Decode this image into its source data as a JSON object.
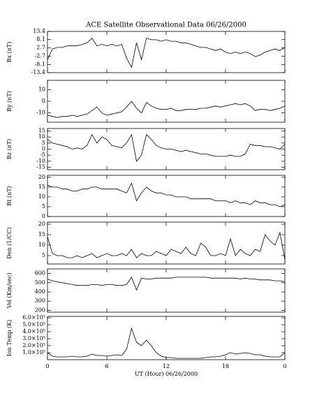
{
  "chart_data": [
    {
      "type": "line",
      "title": "ACE Satellite Observational Data   06/26/2000",
      "ylabel": "Bx (nT)",
      "color": "#000000",
      "x": [
        0,
        0.5,
        1,
        1.5,
        2,
        2.5,
        3,
        3.5,
        4,
        4.5,
        5,
        5.5,
        6,
        6.5,
        7,
        7.5,
        8,
        8.5,
        9,
        9.5,
        10,
        10.5,
        11,
        11.5,
        12,
        12.5,
        13,
        13.5,
        14,
        14.5,
        15,
        15.5,
        16,
        16.5,
        17,
        17.5,
        18,
        18.5,
        19,
        19.5,
        20,
        20.5,
        21,
        21.5,
        22,
        22.5,
        23,
        23.5,
        24
      ],
      "values": [
        -5,
        2,
        3,
        3,
        4,
        4,
        4,
        5,
        6,
        9,
        4,
        5,
        4,
        5,
        4,
        5,
        -4,
        -10,
        6,
        -5,
        9,
        8,
        8,
        7,
        8,
        7,
        7,
        6,
        6,
        5,
        4,
        3,
        3,
        2,
        1,
        2,
        0,
        -1,
        0,
        -1,
        0,
        -1,
        -3,
        -2,
        0,
        1,
        2,
        1,
        3
      ],
      "xlim": [
        0,
        24
      ],
      "xticks": [
        0,
        6,
        12,
        18,
        {
          "value": 24,
          "label": "0"
        }
      ],
      "ylim": [
        -13.4,
        13.4
      ],
      "yticks": [
        13.4,
        8.1,
        2.7,
        -2.7,
        -8.1,
        -13.4
      ]
    },
    {
      "type": "line",
      "ylabel": "By (nT)",
      "color": "#000000",
      "x": [
        0,
        0.5,
        1,
        1.5,
        2,
        2.5,
        3,
        3.5,
        4,
        4.5,
        5,
        5.5,
        6,
        6.5,
        7,
        7.5,
        8,
        8.5,
        9,
        9.5,
        10,
        10.5,
        11,
        11.5,
        12,
        12.5,
        13,
        13.5,
        14,
        14.5,
        15,
        15.5,
        16,
        16.5,
        17,
        17.5,
        18,
        18.5,
        19,
        19.5,
        20,
        20.5,
        21,
        21.5,
        22,
        22.5,
        23,
        23.5,
        24
      ],
      "values": [
        -12,
        -13,
        -14,
        -13,
        -13,
        -12,
        -13,
        -12,
        -11,
        -8,
        -5,
        -10,
        -12,
        -11,
        -10,
        -9,
        -5,
        0,
        -6,
        -10,
        -1,
        -4,
        -6,
        -7,
        -7,
        -6,
        -8,
        -8,
        -7,
        -7,
        -7,
        -6,
        -6,
        -5,
        -4,
        -5,
        -4,
        -3,
        -2,
        -3,
        -2,
        -4,
        -8,
        -7,
        -7,
        -8,
        -7,
        -6,
        -4
      ],
      "xlim": [
        0,
        24
      ],
      "xticks": [
        0,
        6,
        12,
        18,
        {
          "value": 24,
          "label": "0"
        }
      ],
      "ylim": [
        -18,
        18
      ],
      "yticks": [
        10,
        0,
        -10
      ]
    },
    {
      "type": "line",
      "ylabel": "Bz (nT)",
      "color": "#000000",
      "x": [
        0,
        0.5,
        1,
        1.5,
        2,
        2.5,
        3,
        3.5,
        4,
        4.5,
        5,
        5.5,
        6,
        6.5,
        7,
        7.5,
        8,
        8.5,
        9,
        9.5,
        10,
        10.5,
        11,
        11.5,
        12,
        12.5,
        13,
        13.5,
        14,
        14.5,
        15,
        15.5,
        16,
        16.5,
        17,
        17.5,
        18,
        18.5,
        19,
        19.5,
        20,
        20.5,
        21,
        21.5,
        22,
        22.5,
        23,
        23.5,
        24
      ],
      "values": [
        8,
        5,
        4,
        3,
        2,
        0,
        1,
        0,
        3,
        12,
        5,
        10,
        8,
        3,
        2,
        1,
        5,
        12,
        -10,
        -5,
        12,
        8,
        3,
        1,
        0,
        0,
        -1,
        -2,
        -1,
        -2,
        -3,
        -4,
        -4,
        -5,
        -6,
        -6,
        -6,
        -5,
        -6,
        -6,
        -4,
        4,
        3,
        3,
        2,
        2,
        1,
        0,
        4
      ],
      "xlim": [
        0,
        24
      ],
      "xticks": [
        0,
        6,
        12,
        18,
        {
          "value": 24,
          "label": "0"
        }
      ],
      "ylim": [
        -17,
        17
      ],
      "yticks": [
        15,
        10,
        5,
        0,
        -5,
        -10,
        -15
      ]
    },
    {
      "type": "line",
      "ylabel": "Bt (nT)",
      "color": "#000000",
      "x": [
        0,
        0.5,
        1,
        1.5,
        2,
        2.5,
        3,
        3.5,
        4,
        4.5,
        5,
        5.5,
        6,
        6.5,
        7,
        7.5,
        8,
        8.5,
        9,
        9.5,
        10,
        10.5,
        11,
        11.5,
        12,
        12.5,
        13,
        13.5,
        14,
        14.5,
        15,
        15.5,
        16,
        16.5,
        17,
        17.5,
        18,
        18.5,
        19,
        19.5,
        20,
        20.5,
        21,
        21.5,
        22,
        22.5,
        23,
        23.5,
        24
      ],
      "values": [
        16,
        15,
        15,
        14,
        14,
        13,
        13,
        14,
        14,
        15,
        15,
        14,
        14,
        14,
        14,
        13,
        12,
        17,
        8,
        12,
        15,
        13,
        12,
        12,
        11,
        11,
        10,
        10,
        10,
        9,
        9,
        9,
        9,
        9,
        8,
        8,
        8,
        7,
        8,
        7,
        7,
        6,
        8,
        7,
        7,
        6,
        6,
        5,
        6
      ],
      "xlim": [
        0,
        24
      ],
      "xticks": [
        0,
        6,
        12,
        18,
        {
          "value": 24,
          "label": "0"
        }
      ],
      "ylim": [
        0,
        21
      ],
      "yticks": [
        20,
        15,
        10,
        5,
        0
      ]
    },
    {
      "type": "line",
      "ylabel": "Den (1/CC)",
      "color": "#000000",
      "x": [
        0,
        0.5,
        1,
        1.5,
        2,
        2.5,
        3,
        3.5,
        4,
        4.5,
        5,
        5.5,
        6,
        6.5,
        7,
        7.5,
        8,
        8.5,
        9,
        9.5,
        10,
        10.5,
        11,
        11.5,
        12,
        12.5,
        13,
        13.5,
        14,
        14.5,
        15,
        15.5,
        16,
        16.5,
        17,
        17.5,
        18,
        18.5,
        19,
        19.5,
        20,
        20.5,
        21,
        21.5,
        22,
        22.5,
        23,
        23.5,
        24
      ],
      "values": [
        14,
        6,
        5,
        5,
        4,
        4,
        5,
        4,
        5,
        6,
        4,
        5,
        6,
        5,
        5,
        6,
        5,
        8,
        4,
        6,
        5,
        5,
        7,
        6,
        5,
        8,
        7,
        6,
        9,
        6,
        5,
        11,
        9,
        5,
        5,
        6,
        5,
        13,
        5,
        8,
        6,
        5,
        8,
        7,
        15,
        12,
        10,
        16,
        3
      ],
      "xlim": [
        0,
        24
      ],
      "xticks": [
        0,
        6,
        12,
        18,
        {
          "value": 24,
          "label": "0"
        }
      ],
      "ylim": [
        1,
        21
      ],
      "yticks": [
        20,
        15,
        10,
        5
      ]
    },
    {
      "type": "line",
      "ylabel": "Vel (Km/sec)",
      "color": "#000000",
      "x": [
        0,
        0.5,
        1,
        1.5,
        2,
        2.5,
        3,
        3.5,
        4,
        4.5,
        5,
        5.5,
        6,
        6.5,
        7,
        7.5,
        8,
        8.5,
        9,
        9.5,
        10,
        10.5,
        11,
        11.5,
        12,
        12.5,
        13,
        13.5,
        14,
        14.5,
        15,
        15.5,
        16,
        16.5,
        17,
        17.5,
        18,
        18.5,
        19,
        19.5,
        20,
        20.5,
        21,
        21.5,
        22,
        22.5,
        23,
        23.5,
        24
      ],
      "values": [
        540,
        520,
        510,
        500,
        490,
        480,
        470,
        470,
        470,
        480,
        480,
        470,
        480,
        480,
        470,
        470,
        480,
        560,
        420,
        550,
        540,
        540,
        550,
        550,
        550,
        550,
        560,
        560,
        560,
        560,
        560,
        560,
        560,
        550,
        550,
        550,
        550,
        550,
        550,
        540,
        550,
        540,
        540,
        530,
        530,
        530,
        520,
        520,
        510
      ],
      "xlim": [
        0,
        24
      ],
      "xticks": [
        0,
        6,
        12,
        18,
        {
          "value": 24,
          "label": "0"
        }
      ],
      "ylim": [
        180,
        650
      ],
      "yticks": [
        600,
        500,
        400,
        300,
        200
      ]
    },
    {
      "type": "line",
      "ylabel": "Ion Temp (K)",
      "xlabel": "UT (Hour)   06/26/2000",
      "color": "#000000",
      "x": [
        0,
        0.5,
        1,
        1.5,
        2,
        2.5,
        3,
        3.5,
        4,
        4.5,
        5,
        5.5,
        6,
        6.5,
        7,
        7.5,
        8,
        8.5,
        9,
        9.5,
        10,
        10.5,
        11,
        11.5,
        12,
        12.5,
        13,
        13.5,
        14,
        14.5,
        15,
        15.5,
        16,
        16.5,
        17,
        17.5,
        18,
        18.5,
        19,
        19.5,
        20,
        20.5,
        21,
        21.5,
        22,
        22.5,
        23,
        23.5,
        24
      ],
      "values": [
        100000,
        50000,
        40000,
        40000,
        40000,
        50000,
        40000,
        40000,
        50000,
        80000,
        60000,
        60000,
        50000,
        60000,
        70000,
        60000,
        150000,
        450000,
        250000,
        200000,
        280000,
        200000,
        100000,
        50000,
        30000,
        30000,
        20000,
        20000,
        20000,
        20000,
        20000,
        20000,
        30000,
        40000,
        40000,
        50000,
        70000,
        100000,
        80000,
        90000,
        100000,
        90000,
        70000,
        70000,
        50000,
        40000,
        40000,
        40000,
        100000
      ],
      "xlim": [
        0,
        24
      ],
      "xticks": [
        0,
        6,
        12,
        18,
        {
          "value": 24,
          "label": "0"
        }
      ],
      "ylim": [
        0,
        620000
      ],
      "yticks": [
        {
          "value": 600000,
          "label": "6.0×10⁵"
        },
        {
          "value": 500000,
          "label": "5.0×10⁵"
        },
        {
          "value": 400000,
          "label": "4.0×10⁵"
        },
        {
          "value": 300000,
          "label": "3.0×10⁵"
        },
        {
          "value": 200000,
          "label": "2.0×10⁵"
        },
        {
          "value": 100000,
          "label": "1.0×10⁵"
        }
      ],
      "show_xtick_labels": true
    }
  ]
}
